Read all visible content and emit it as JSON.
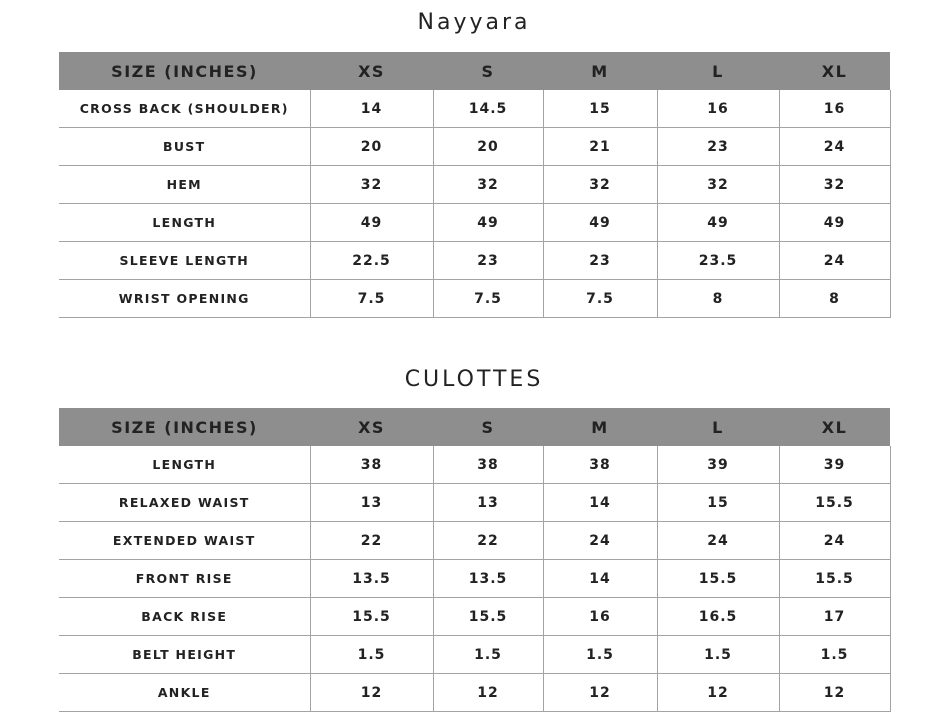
{
  "tables": [
    {
      "title": "Nayyara",
      "headers": [
        "SIZE (INCHES)",
        "XS",
        "S",
        "M",
        "L",
        "XL"
      ],
      "rows": [
        [
          "CROSS BACK (SHOULDER)",
          "14",
          "14.5",
          "15",
          "16",
          "16"
        ],
        [
          "BUST",
          "20",
          "20",
          "21",
          "23",
          "24"
        ],
        [
          "HEM",
          "32",
          "32",
          "32",
          "32",
          "32"
        ],
        [
          "LENGTH",
          "49",
          "49",
          "49",
          "49",
          "49"
        ],
        [
          "SLEEVE LENGTH",
          "22.5",
          "23",
          "23",
          "23.5",
          "24"
        ],
        [
          "WRIST OPENING",
          "7.5",
          "7.5",
          "7.5",
          "8",
          "8"
        ]
      ]
    },
    {
      "title": "CULOTTES",
      "headers": [
        "SIZE (INCHES)",
        "XS",
        "S",
        "M",
        "L",
        "XL"
      ],
      "rows": [
        [
          "LENGTH",
          "38",
          "38",
          "38",
          "39",
          "39"
        ],
        [
          "RELAXED WAIST",
          "13",
          "13",
          "14",
          "15",
          "15.5"
        ],
        [
          "EXTENDED WAIST",
          "22",
          "22",
          "24",
          "24",
          "24"
        ],
        [
          "FRONT RISE",
          "13.5",
          "13.5",
          "14",
          "15.5",
          "15.5"
        ],
        [
          "BACK RISE",
          "15.5",
          "15.5",
          "16",
          "16.5",
          "17"
        ],
        [
          "BELT HEIGHT",
          "1.5",
          "1.5",
          "1.5",
          "1.5",
          "1.5"
        ],
        [
          "ANKLE",
          "12",
          "12",
          "12",
          "12",
          "12"
        ]
      ]
    }
  ],
  "colors": {
    "header_bg": "#8e8e8e",
    "border": "#a3a3a3",
    "text": "#222222"
  }
}
